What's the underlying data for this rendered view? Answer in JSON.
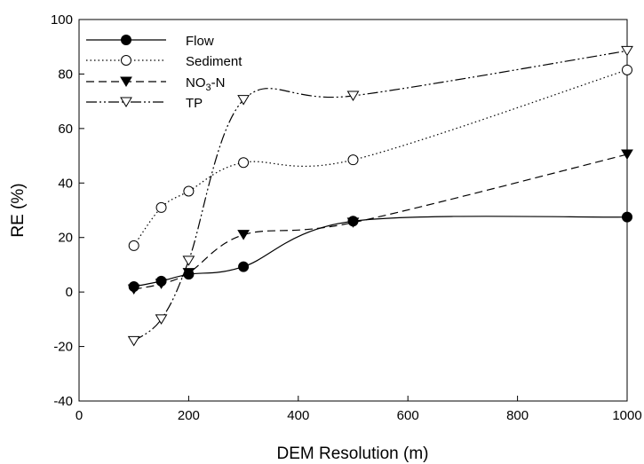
{
  "chart_data": {
    "type": "line",
    "title": "",
    "xlabel": "DEM Resolution (m)",
    "ylabel": "RE (%)",
    "xlim": [
      0,
      1000
    ],
    "ylim": [
      -40,
      100
    ],
    "x_ticks": [
      "0",
      "200",
      "400",
      "600",
      "800",
      "1000"
    ],
    "y_ticks": [
      "-40",
      "-20",
      "0",
      "20",
      "40",
      "60",
      "80",
      "100"
    ],
    "grid": false,
    "legend_position": "top-left",
    "series": [
      {
        "name": "Flow",
        "marker": "filled-circle",
        "line_style": "solid",
        "x": [
          100,
          150,
          200,
          300,
          500,
          1000
        ],
        "values": [
          2,
          4,
          6.5,
          9.3,
          26,
          27.5
        ]
      },
      {
        "name": "Sediment",
        "marker": "open-circle",
        "line_style": "dotted",
        "x": [
          100,
          150,
          200,
          300,
          500,
          1000
        ],
        "values": [
          17,
          31,
          37,
          47.5,
          48.5,
          81.5
        ]
      },
      {
        "name": "NO3-N",
        "name_base": "NO",
        "name_sub": "3",
        "name_suffix": "-N",
        "marker": "filled-triangle-down",
        "line_style": "dashed",
        "x": [
          100,
          150,
          200,
          300,
          500,
          1000
        ],
        "values": [
          1,
          3,
          7,
          21,
          25.5,
          50.5
        ]
      },
      {
        "name": "TP",
        "marker": "open-triangle-down",
        "line_style": "dash-dot-dot",
        "x": [
          100,
          150,
          200,
          300,
          500,
          1000
        ],
        "values": [
          -18,
          -10,
          11.5,
          70.5,
          72,
          88.5
        ]
      }
    ]
  }
}
